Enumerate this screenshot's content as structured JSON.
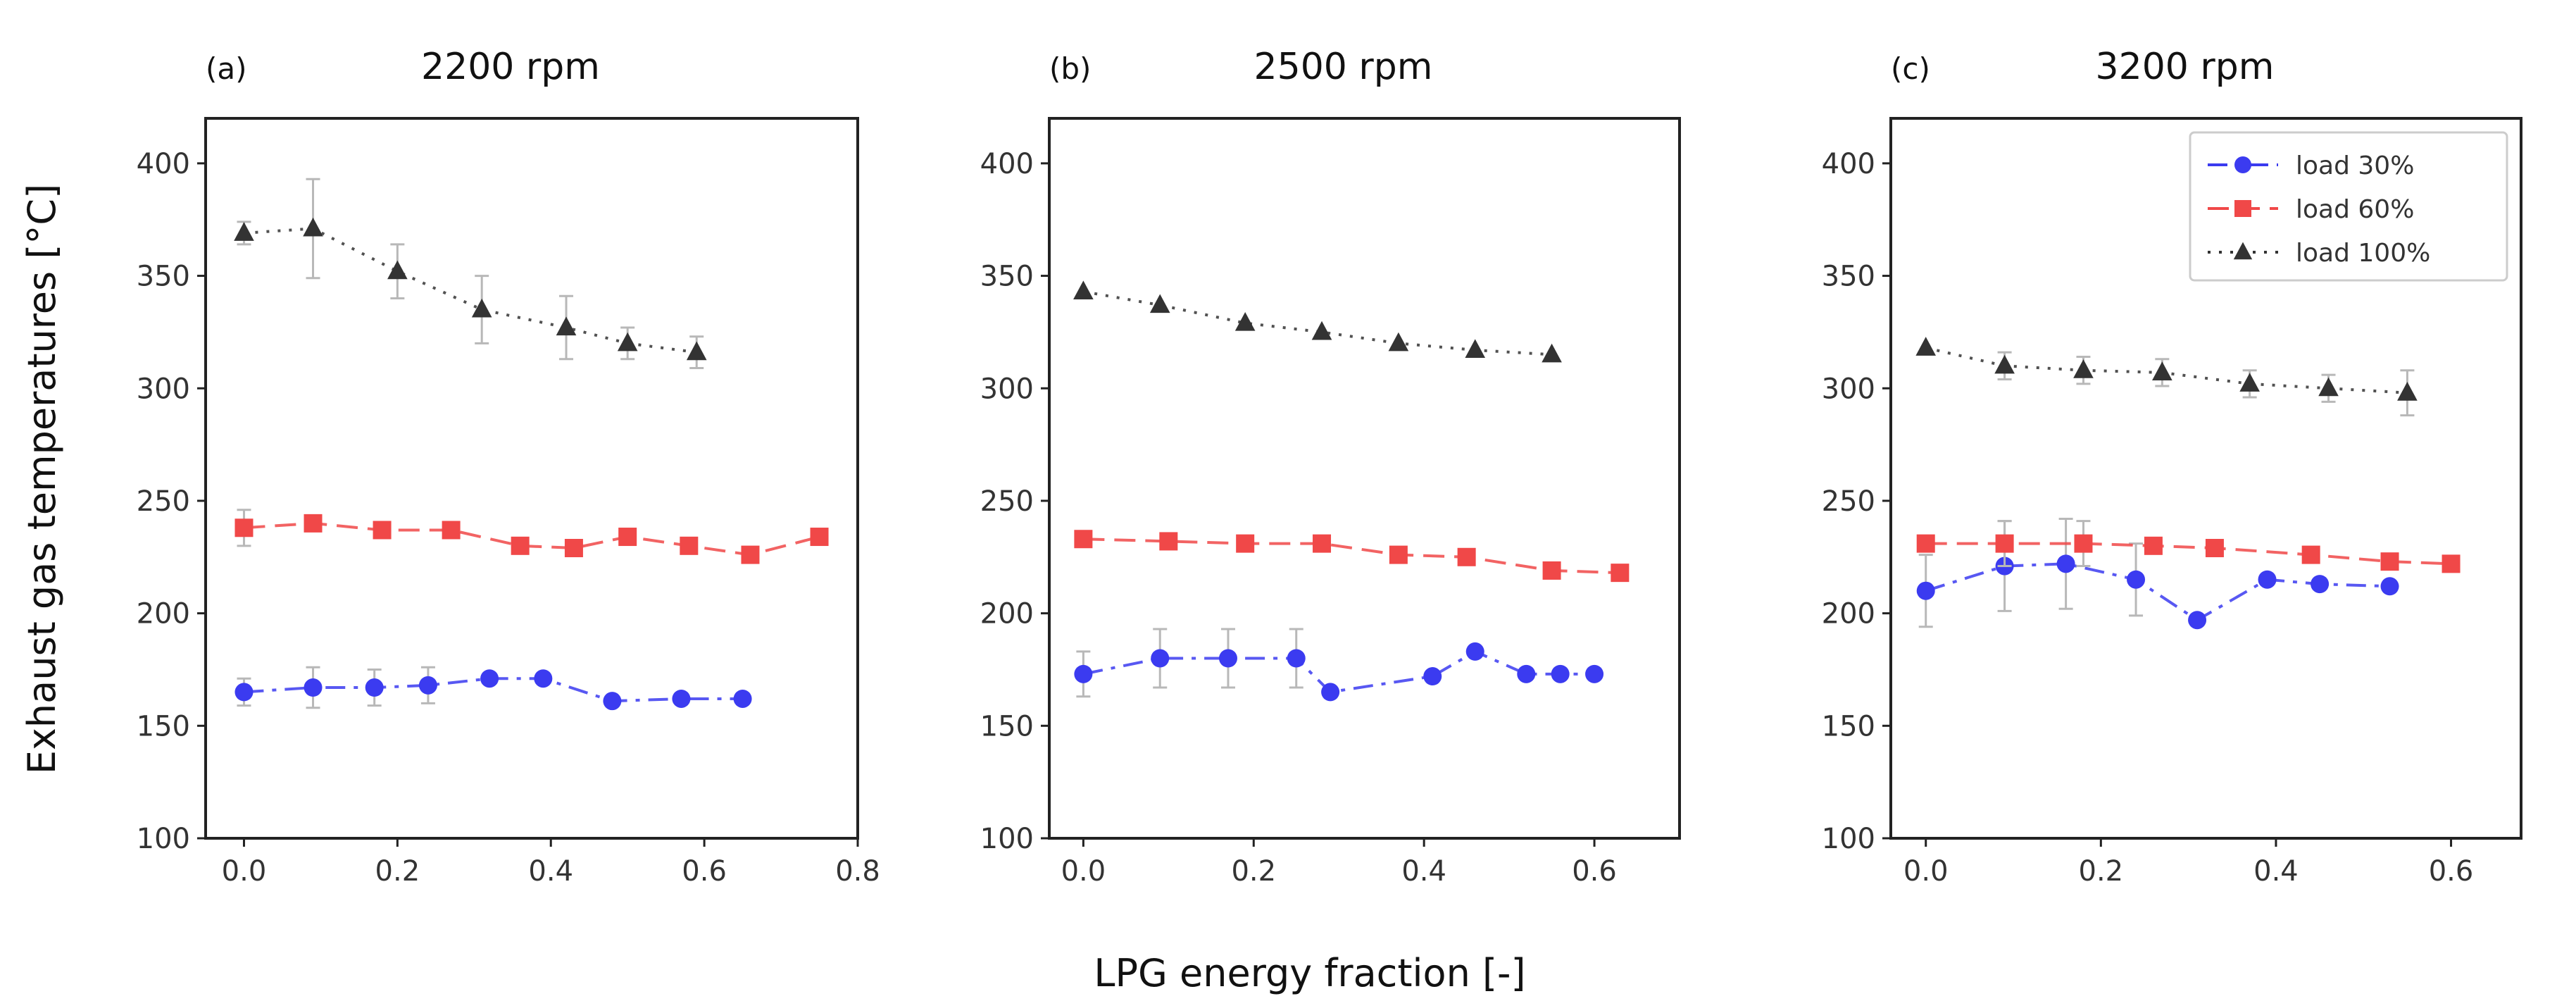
{
  "chart_data": [
    {
      "type": "line",
      "panel_label": "(a)",
      "title": "2200 rpm",
      "xlabel": "",
      "ylabel": "Exhaust gas temperatures [°C]",
      "xlim": [
        -0.05,
        0.8
      ],
      "ylim": [
        100,
        420
      ],
      "xticks": [
        0.0,
        0.2,
        0.4,
        0.6,
        0.8
      ],
      "xtick_labels": [
        "0.0",
        "0.2",
        "0.4",
        "0.6",
        "0.8"
      ],
      "yticks": [
        100,
        150,
        200,
        250,
        300,
        350,
        400
      ],
      "ytick_labels": [
        "100",
        "150",
        "200",
        "250",
        "300",
        "350",
        "400"
      ],
      "series": [
        {
          "name": "load 30%",
          "color": "#3b3bf0",
          "marker": "circle",
          "dash": "dashdot",
          "x": [
            0.0,
            0.09,
            0.17,
            0.24,
            0.32,
            0.39,
            0.48,
            0.57,
            0.65
          ],
          "y": [
            165,
            167,
            167,
            168,
            171,
            171,
            161,
            162,
            162
          ],
          "err": [
            6,
            9,
            8,
            8,
            0,
            0,
            0,
            0,
            0
          ]
        },
        {
          "name": "load 60%",
          "color": "#f04848",
          "marker": "square",
          "dash": "dashed",
          "x": [
            0.0,
            0.09,
            0.18,
            0.27,
            0.36,
            0.43,
            0.5,
            0.58,
            0.66,
            0.75
          ],
          "y": [
            238,
            240,
            237,
            237,
            230,
            229,
            234,
            230,
            226,
            234
          ],
          "err": [
            8,
            0,
            0,
            0,
            0,
            0,
            0,
            0,
            0,
            0
          ]
        },
        {
          "name": "load 100%",
          "color": "#333333",
          "marker": "triangle",
          "dash": "dotted",
          "x": [
            0.0,
            0.09,
            0.2,
            0.31,
            0.42,
            0.5,
            0.59
          ],
          "y": [
            369,
            371,
            352,
            335,
            327,
            320,
            316
          ],
          "err": [
            5,
            22,
            12,
            15,
            14,
            7,
            7
          ]
        }
      ]
    },
    {
      "type": "line",
      "panel_label": "(b)",
      "title": "2500 rpm",
      "xlabel": "LPG energy fraction [-]",
      "ylabel": "",
      "xlim": [
        -0.04,
        0.7
      ],
      "ylim": [
        100,
        420
      ],
      "xticks": [
        0.0,
        0.2,
        0.4,
        0.6
      ],
      "xtick_labels": [
        "0.0",
        "0.2",
        "0.4",
        "0.6"
      ],
      "yticks": [
        100,
        150,
        200,
        250,
        300,
        350,
        400
      ],
      "ytick_labels": [
        "100",
        "150",
        "200",
        "250",
        "300",
        "350",
        "400"
      ],
      "series": [
        {
          "name": "load 30%",
          "color": "#3b3bf0",
          "marker": "circle",
          "dash": "dashdot",
          "x": [
            0.0,
            0.09,
            0.17,
            0.25,
            0.29,
            0.41,
            0.46,
            0.52,
            0.56,
            0.6
          ],
          "y": [
            173,
            180,
            180,
            180,
            165,
            172,
            183,
            173,
            173,
            173
          ],
          "err": [
            10,
            13,
            13,
            13,
            0,
            0,
            0,
            0,
            0,
            0
          ]
        },
        {
          "name": "load 60%",
          "color": "#f04848",
          "marker": "square",
          "dash": "dashed",
          "x": [
            0.0,
            0.1,
            0.19,
            0.28,
            0.37,
            0.45,
            0.55,
            0.63
          ],
          "y": [
            233,
            232,
            231,
            231,
            226,
            225,
            219,
            218
          ],
          "err": [
            0,
            0,
            0,
            0,
            0,
            0,
            0,
            0
          ]
        },
        {
          "name": "load 100%",
          "color": "#333333",
          "marker": "triangle",
          "dash": "dotted",
          "x": [
            0.0,
            0.09,
            0.19,
            0.28,
            0.37,
            0.46,
            0.55
          ],
          "y": [
            343,
            337,
            329,
            325,
            320,
            317,
            315
          ],
          "err": [
            0,
            0,
            0,
            0,
            0,
            0,
            0
          ]
        }
      ]
    },
    {
      "type": "line",
      "panel_label": "(c)",
      "title": "3200 rpm",
      "xlabel": "",
      "ylabel": "",
      "xlim": [
        -0.04,
        0.68
      ],
      "ylim": [
        100,
        420
      ],
      "xticks": [
        0.0,
        0.2,
        0.4,
        0.6
      ],
      "xtick_labels": [
        "0.0",
        "0.2",
        "0.4",
        "0.6"
      ],
      "yticks": [
        100,
        150,
        200,
        250,
        300,
        350,
        400
      ],
      "ytick_labels": [
        "100",
        "150",
        "200",
        "250",
        "300",
        "350",
        "400"
      ],
      "legend": "top-right",
      "series": [
        {
          "name": "load 30%",
          "color": "#3b3bf0",
          "marker": "circle",
          "dash": "dashdot",
          "x": [
            0.0,
            0.09,
            0.16,
            0.24,
            0.31,
            0.39,
            0.45,
            0.53
          ],
          "y": [
            210,
            221,
            222,
            215,
            197,
            215,
            213,
            212
          ],
          "err": [
            16,
            20,
            20,
            16,
            0,
            0,
            0,
            0
          ]
        },
        {
          "name": "load 60%",
          "color": "#f04848",
          "marker": "square",
          "dash": "dashed",
          "x": [
            0.0,
            0.09,
            0.18,
            0.26,
            0.33,
            0.44,
            0.53,
            0.6
          ],
          "y": [
            231,
            231,
            231,
            230,
            229,
            226,
            223,
            222
          ],
          "err": [
            0,
            10,
            10,
            0,
            0,
            0,
            0,
            0
          ]
        },
        {
          "name": "load 100%",
          "color": "#333333",
          "marker": "triangle",
          "dash": "dotted",
          "x": [
            0.0,
            0.09,
            0.18,
            0.27,
            0.37,
            0.46,
            0.55
          ],
          "y": [
            318,
            310,
            308,
            307,
            302,
            300,
            298
          ],
          "err": [
            0,
            6,
            6,
            6,
            6,
            6,
            10
          ]
        }
      ]
    }
  ]
}
